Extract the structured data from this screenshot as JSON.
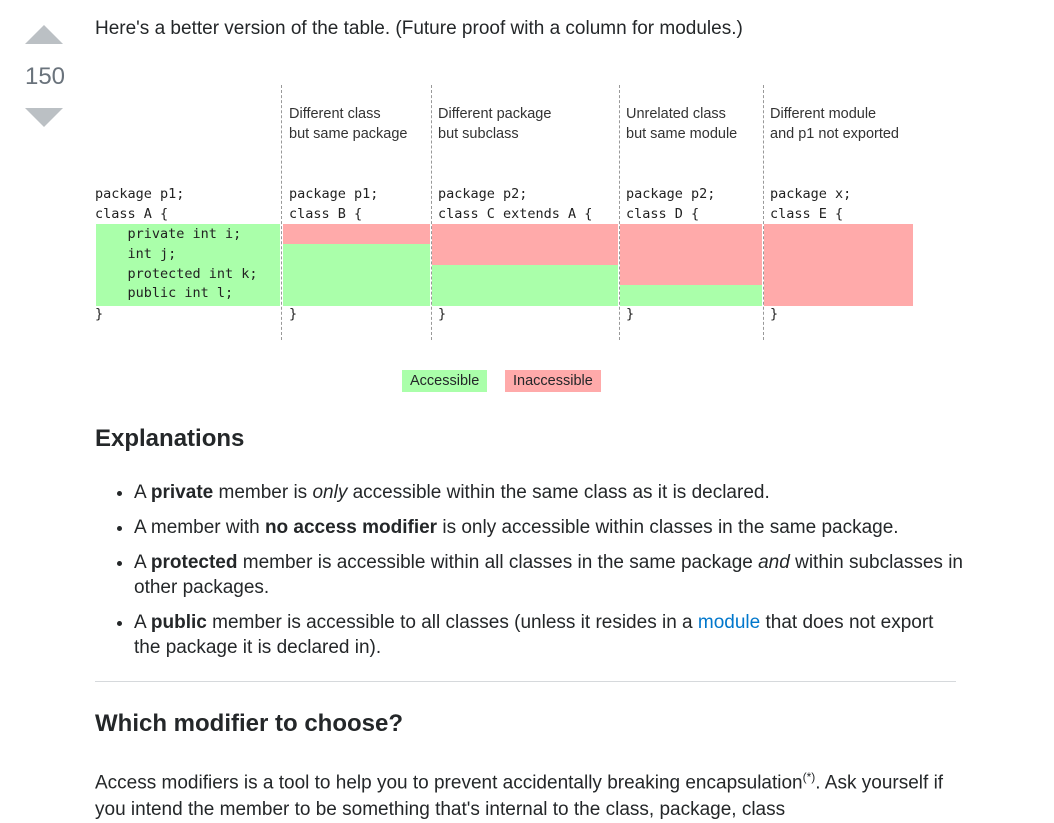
{
  "vote": {
    "score": "150"
  },
  "answer": {
    "intro": "Here's a better version of the table. (Future proof with a column for modules.)",
    "diagram": {
      "columns": [
        {
          "header1": "",
          "header2": "",
          "code": "package p1;\nclass A {",
          "close": "}",
          "members": "    private int i;\n    int j;\n    protected int k;\n    public int l;",
          "access": [
            "accessible",
            "accessible",
            "accessible",
            "accessible"
          ]
        },
        {
          "header1": "Different class",
          "header2": "but same package",
          "code": "package p1;\nclass B {",
          "close": "}",
          "access": [
            "inaccessible",
            "accessible",
            "accessible",
            "accessible"
          ]
        },
        {
          "header1": "Different package",
          "header2": "but subclass",
          "code": "package p2;\nclass C extends A {",
          "close": "}",
          "access": [
            "inaccessible",
            "inaccessible",
            "accessible",
            "accessible"
          ]
        },
        {
          "header1": "Unrelated class",
          "header2": "but same module",
          "code": "package p2;\nclass D {",
          "close": "}",
          "access": [
            "inaccessible",
            "inaccessible",
            "inaccessible",
            "accessible"
          ]
        },
        {
          "header1": "Different module",
          "header2": "and p1 not exported",
          "code": "package x;\nclass E {",
          "close": "}",
          "access": [
            "inaccessible",
            "inaccessible",
            "inaccessible",
            "inaccessible"
          ]
        }
      ],
      "legend": {
        "accessible": "Accessible",
        "inaccessible": "Inaccessible"
      },
      "colors": {
        "accessible": "#aaffaa",
        "inaccessible": "#ffaaaa"
      }
    },
    "explanations": {
      "heading": "Explanations",
      "items": [
        {
          "a": "A ",
          "b": "private",
          "c": " member is ",
          "i": "only",
          "d": " accessible within the same class as it is declared."
        },
        {
          "a": "A member with ",
          "b": "no access modifier",
          "c": " is only accessible within classes in the same package."
        },
        {
          "a": "A ",
          "b": "protected",
          "c": " member is accessible within all classes in the same package ",
          "i": "and",
          "d": " within subclasses in other packages."
        },
        {
          "a": "A ",
          "b": "public",
          "c": " member is accessible to all classes (unless it resides in a ",
          "link": "module",
          "d": " that does not export the package it is declared in)."
        }
      ]
    },
    "choose": {
      "heading": "Which modifier to choose?",
      "p1": "Access modifiers is a tool to help you to prevent accidentally breaking encapsulation",
      "sup": "(*)",
      "p2": ". Ask yourself if you intend the member to be something that's internal to the class, package, class"
    }
  }
}
